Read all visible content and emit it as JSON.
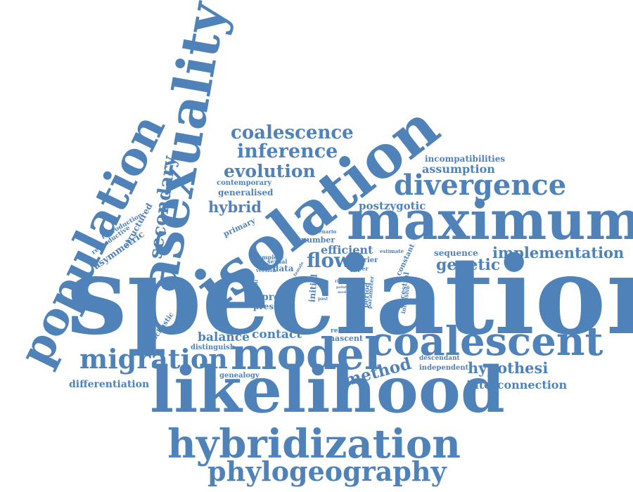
{
  "title": "",
  "color": "#4f82b8",
  "words": [
    {
      "text": "speciation"
    },
    {
      "text": "likelihood"
    },
    {
      "text": "maximum"
    },
    {
      "text": "isolation"
    },
    {
      "text": "asexuality"
    },
    {
      "text": "population"
    },
    {
      "text": "hybridization"
    },
    {
      "text": "model"
    },
    {
      "text": "coalescent"
    },
    {
      "text": "phylogeography"
    },
    {
      "text": "divergence"
    },
    {
      "text": "migration"
    },
    {
      "text": "coalescence"
    },
    {
      "text": "inference"
    },
    {
      "text": "evolution"
    },
    {
      "text": "secondary"
    },
    {
      "text": "implementation"
    },
    {
      "text": "hybrid"
    },
    {
      "text": "flow"
    },
    {
      "text": "genetic"
    },
    {
      "text": "method"
    },
    {
      "text": "hypothesi"
    },
    {
      "text": "contact"
    },
    {
      "text": "balance"
    },
    {
      "text": "efficient"
    },
    {
      "text": "postzygotic"
    },
    {
      "text": "assumption"
    },
    {
      "text": "incompatibilities"
    },
    {
      "text": "interconnection"
    },
    {
      "text": "differentiation"
    },
    {
      "text": "asymmetric"
    },
    {
      "text": "structured"
    },
    {
      "text": "reproductive"
    },
    {
      "text": "reproduction"
    },
    {
      "text": "primary"
    },
    {
      "text": "generalised"
    },
    {
      "text": "contemporary"
    },
    {
      "text": "sequence"
    },
    {
      "text": "number"
    },
    {
      "text": "proc"
    },
    {
      "text": "present"
    },
    {
      "text": "data"
    },
    {
      "text": "barrier"
    },
    {
      "text": "paper"
    },
    {
      "text": "stochastic"
    },
    {
      "text": "distinguish"
    },
    {
      "text": "genealogy"
    },
    {
      "text": "independent"
    },
    {
      "text": "descendant"
    },
    {
      "text": "related"
    },
    {
      "text": "nascent"
    },
    {
      "text": "initial"
    },
    {
      "text": "period"
    },
    {
      "text": "parameter"
    },
    {
      "text": "ancestral"
    },
    {
      "text": "intensive"
    },
    {
      "text": "constant"
    },
    {
      "text": "estimate"
    },
    {
      "text": "scenario"
    },
    {
      "text": "complete"
    },
    {
      "text": "sexual"
    },
    {
      "text": "version"
    },
    {
      "text": "analysis"
    },
    {
      "text": "unusual"
    },
    {
      "text": "female"
    },
    {
      "text": "ride"
    },
    {
      "text": "point"
    },
    {
      "text": "past"
    },
    {
      "text": "mode"
    }
  ]
}
